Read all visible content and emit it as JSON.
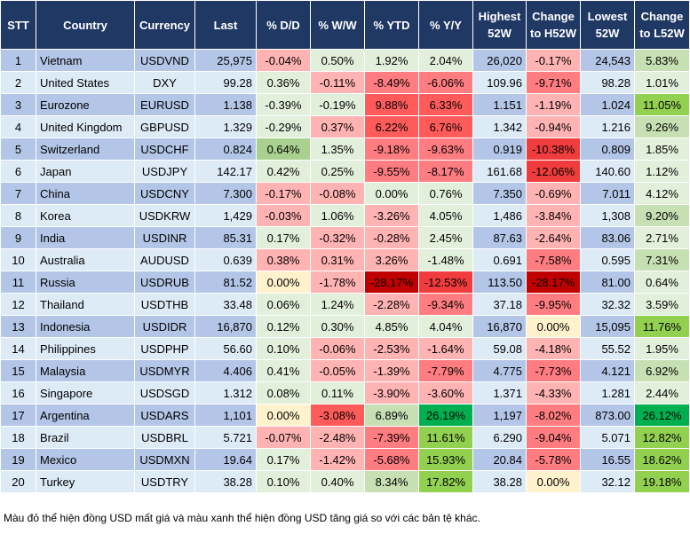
{
  "headers": [
    "STT",
    "Country",
    "Currency",
    "Last",
    "% D/D",
    "% W/W",
    "% YTD",
    "% Y/Y",
    "Highest 52W",
    "Change to H52W",
    "Lowest 52W",
    "Change to L52W"
  ],
  "colors": {
    "header_bg": "#203864",
    "row_odd": "#b4c6e7",
    "row_even": "#ddebf7",
    "g": "#e2efda",
    "G": "#c6e0b4",
    "A": "#a9d08e",
    "B": "#92d050",
    "E": "#00b050",
    "p": "#ffb3b3",
    "r": "#ff7c80",
    "R": "#ff5b5b",
    "D": "#f03c3c",
    "K": "#c00000",
    "y": "#fff2cc"
  },
  "rows": [
    {
      "stt": "1",
      "country": "Vietnam",
      "currency": "USDVND",
      "last": "25,975",
      "dd": "-0.04%",
      "ww": "0.50%",
      "ytd": "1.92%",
      "yy": "2.04%",
      "high": "26,020",
      "chh": "-0.17%",
      "low": "24,543",
      "chl": "5.83%",
      "shade": "pgggpG"
    },
    {
      "stt": "2",
      "country": "United States",
      "currency": "DXY",
      "last": "99.28",
      "dd": "0.36%",
      "ww": "-0.11%",
      "ytd": "-8.49%",
      "yy": "-6.06%",
      "high": "109.96",
      "chh": "-9.71%",
      "low": "98.28",
      "chl": "1.01%",
      "shade": "gprrrg"
    },
    {
      "stt": "3",
      "country": "Eurozone",
      "currency": "EURUSD",
      "last": "1.138",
      "dd": "-0.39%",
      "ww": "-0.19%",
      "ytd": "9.88%",
      "yy": "6.33%",
      "high": "1.151",
      "chh": "-1.19%",
      "low": "1.024",
      "chl": "11.05%",
      "shade": "ggRRpB"
    },
    {
      "stt": "4",
      "country": "United Kingdom",
      "currency": "GBPUSD",
      "last": "1.329",
      "dd": "-0.29%",
      "ww": "0.37%",
      "ytd": "6.22%",
      "yy": "6.76%",
      "high": "1.342",
      "chh": "-0.94%",
      "low": "1.216",
      "chl": "9.26%",
      "shade": "gpRRpG"
    },
    {
      "stt": "5",
      "country": "Switzerland",
      "currency": "USDCHF",
      "last": "0.824",
      "dd": "0.64%",
      "ww": "1.35%",
      "ytd": "-9.18%",
      "yy": "-9.63%",
      "high": "0.919",
      "chh": "-10.38%",
      "low": "0.809",
      "chl": "1.85%",
      "shade": "AgrrDg"
    },
    {
      "stt": "6",
      "country": "Japan",
      "currency": "USDJPY",
      "last": "142.17",
      "dd": "0.42%",
      "ww": "0.25%",
      "ytd": "-9.55%",
      "yy": "-8.17%",
      "high": "161.68",
      "chh": "-12.06%",
      "low": "140.60",
      "chl": "1.12%",
      "shade": "ggrrDg"
    },
    {
      "stt": "7",
      "country": "China",
      "currency": "USDCNY",
      "last": "7.300",
      "dd": "-0.17%",
      "ww": "-0.08%",
      "ytd": "0.00%",
      "yy": "0.76%",
      "high": "7.350",
      "chh": "-0.69%",
      "low": "7.011",
      "chl": "4.12%",
      "shade": "ppggpg"
    },
    {
      "stt": "8",
      "country": "Korea",
      "currency": "USDKRW",
      "last": "1,429",
      "dd": "-0.03%",
      "ww": "1.06%",
      "ytd": "-3.26%",
      "yy": "4.05%",
      "high": "1,486",
      "chh": "-3.84%",
      "low": "1,308",
      "chl": "9.20%",
      "shade": "pgpgpG"
    },
    {
      "stt": "9",
      "country": "India",
      "currency": "USDINR",
      "last": "85.31",
      "dd": "0.17%",
      "ww": "-0.32%",
      "ytd": "-0.28%",
      "yy": "2.45%",
      "high": "87.63",
      "chh": "-2.64%",
      "low": "83.06",
      "chl": "2.71%",
      "shade": "gppgpg"
    },
    {
      "stt": "10",
      "country": "Australia",
      "currency": "AUDUSD",
      "last": "0.639",
      "dd": "0.38%",
      "ww": "0.31%",
      "ytd": "3.26%",
      "yy": "-1.48%",
      "high": "0.691",
      "chh": "-7.58%",
      "low": "0.595",
      "chl": "7.31%",
      "shade": "pppgrG"
    },
    {
      "stt": "11",
      "country": "Russia",
      "currency": "USDRUB",
      "last": "81.52",
      "dd": "0.00%",
      "ww": "-1.78%",
      "ytd": "-28.17%",
      "yy": "-12.53%",
      "high": "113.50",
      "chh": "-28.17%",
      "low": "81.00",
      "chl": "0.64%",
      "shade": "ypKDKg"
    },
    {
      "stt": "12",
      "country": "Thailand",
      "currency": "USDTHB",
      "last": "33.48",
      "dd": "0.06%",
      "ww": "1.24%",
      "ytd": "-2.28%",
      "yy": "-9.34%",
      "high": "37.18",
      "chh": "-9.95%",
      "low": "32.32",
      "chl": "3.59%",
      "shade": "ggprrg"
    },
    {
      "stt": "13",
      "country": "Indonesia",
      "currency": "USDIDR",
      "last": "16,870",
      "dd": "0.12%",
      "ww": "0.30%",
      "ytd": "4.85%",
      "yy": "4.04%",
      "high": "16,870",
      "chh": "0.00%",
      "low": "15,095",
      "chl": "11.76%",
      "shade": "ggggyB"
    },
    {
      "stt": "14",
      "country": "Philippines",
      "currency": "USDPHP",
      "last": "56.60",
      "dd": "0.10%",
      "ww": "-0.06%",
      "ytd": "-2.53%",
      "yy": "-1.64%",
      "high": "59.08",
      "chh": "-4.18%",
      "low": "55.52",
      "chl": "1.95%",
      "shade": "gppppg"
    },
    {
      "stt": "15",
      "country": "Malaysia",
      "currency": "USDMYR",
      "last": "4.406",
      "dd": "0.41%",
      "ww": "-0.05%",
      "ytd": "-1.39%",
      "yy": "-7.79%",
      "high": "4.775",
      "chh": "-7.73%",
      "low": "4.121",
      "chl": "6.92%",
      "shade": "gpprrG"
    },
    {
      "stt": "16",
      "country": "Singapore",
      "currency": "USDSGD",
      "last": "1.312",
      "dd": "0.08%",
      "ww": "0.11%",
      "ytd": "-3.90%",
      "yy": "-3.60%",
      "high": "1.371",
      "chh": "-4.33%",
      "low": "1.281",
      "chl": "2.44%",
      "shade": "ggpppg"
    },
    {
      "stt": "17",
      "country": "Argentina",
      "currency": "USDARS",
      "last": "1,101",
      "dd": "0.00%",
      "ww": "-3.08%",
      "ytd": "6.89%",
      "yy": "26.19%",
      "high": "1,197",
      "chh": "-8.02%",
      "low": "873.00",
      "chl": "26.12%",
      "shade": "yRGErE"
    },
    {
      "stt": "18",
      "country": "Brazil",
      "currency": "USDBRL",
      "last": "5.721",
      "dd": "-0.07%",
      "ww": "-2.48%",
      "ytd": "-7.39%",
      "yy": "11.61%",
      "high": "6.290",
      "chh": "-9.04%",
      "low": "5.071",
      "chl": "12.82%",
      "shade": "pprBrB"
    },
    {
      "stt": "19",
      "country": "Mexico",
      "currency": "USDMXN",
      "last": "19.64",
      "dd": "0.17%",
      "ww": "-1.42%",
      "ytd": "-5.68%",
      "yy": "15.93%",
      "high": "20.84",
      "chh": "-5.78%",
      "low": "16.55",
      "chl": "18.62%",
      "shade": "gprBrB"
    },
    {
      "stt": "20",
      "country": "Turkey",
      "currency": "USDTRY",
      "last": "38.28",
      "dd": "0.10%",
      "ww": "0.40%",
      "ytd": "8.34%",
      "yy": "17.82%",
      "high": "38.28",
      "chh": "0.00%",
      "low": "32.12",
      "chl": "19.18%",
      "shade": "ggGByB"
    }
  ],
  "note": "Màu đỏ thể hiện đồng USD mất giá và màu xanh thể hiện đồng USD tăng giá so với các bản tệ khác."
}
